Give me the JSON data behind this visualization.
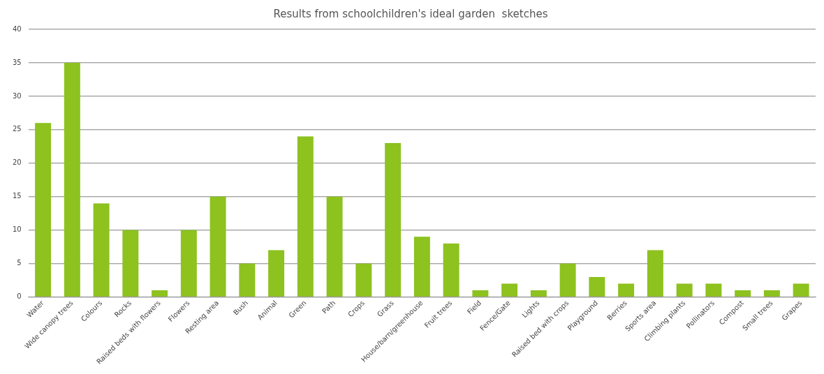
{
  "chart_data": {
    "type": "bar",
    "title": "Results from schoolchildren's ideal garden  sketches",
    "categories": [
      "Water",
      "Wide canopy trees",
      "Colours",
      "Rocks",
      "Raised beds with flowers",
      "Flowers",
      "Resting area",
      "Bush",
      "Animal",
      "Green",
      "Path",
      "Crops",
      "Grass",
      "House/barn/greenhouse",
      "Fruit trees",
      "Field",
      "Fence/Gate",
      "Lights",
      "Raised bed with crops",
      "Playground",
      "Berries",
      "Sports area",
      "Climbing plants",
      "Pollinators",
      "Compost",
      "Small trees",
      "Grapes"
    ],
    "values": [
      26,
      35,
      14,
      10,
      1,
      10,
      15,
      5,
      7,
      24,
      15,
      5,
      23,
      9,
      8,
      1,
      2,
      1,
      5,
      3,
      2,
      7,
      2,
      2,
      1,
      1,
      2
    ],
    "color": "#8dc21f",
    "ylim": [
      0,
      40
    ],
    "yticks": [
      0,
      5,
      10,
      15,
      20,
      25,
      30,
      35,
      40
    ],
    "grid": "y",
    "legend": false
  }
}
